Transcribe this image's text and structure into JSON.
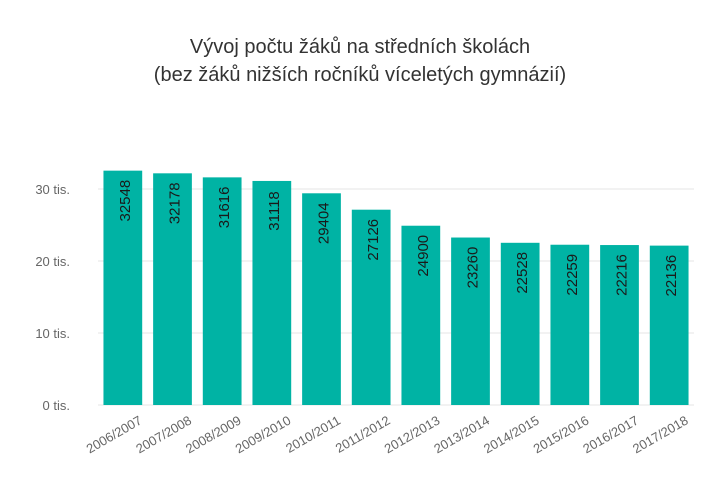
{
  "chart_data": {
    "type": "bar",
    "title": "Vývoj počtu žáků na středních školách",
    "subtitle": "(bez žáků nižších ročníků víceletých gymnázií)",
    "xlabel": "",
    "ylabel": "",
    "categories": [
      "2006/2007",
      "2007/2008",
      "2008/2009",
      "2009/2010",
      "2010/2011",
      "2011/2012",
      "2012/2013",
      "2013/2014",
      "2014/2015",
      "2015/2016",
      "2016/2017",
      "2017/2018"
    ],
    "values": [
      32548,
      32178,
      31616,
      31118,
      29404,
      27126,
      24900,
      23260,
      22528,
      22259,
      22216,
      22136
    ],
    "data_labels": [
      "32548",
      "32178",
      "31616",
      "31118",
      "29404",
      "27126",
      "24900",
      "23260",
      "22528",
      "22259",
      "22216",
      "22136"
    ],
    "yticks": [
      0,
      10000,
      20000,
      30000
    ],
    "ytick_labels": [
      "0 tis.",
      "10 tis.",
      "20 tis.",
      "30 tis."
    ],
    "ylim": [
      0,
      30000
    ],
    "grid": true,
    "bar_color": "#00B3A4",
    "grid_color": "#e6e6e6",
    "label_color": "#666666",
    "data_label_color": "#1a1a1a"
  }
}
